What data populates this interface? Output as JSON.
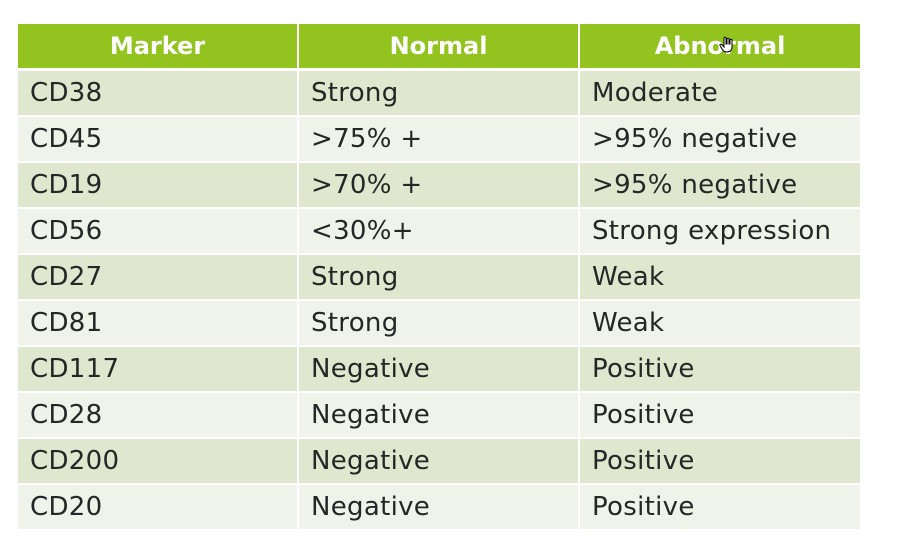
{
  "table": {
    "headers": [
      "Marker",
      "Normal",
      "Abnormal"
    ],
    "rows": [
      [
        "CD38",
        "Strong",
        "Moderate"
      ],
      [
        "CD45",
        ">75% +",
        ">95% negative"
      ],
      [
        "CD19",
        ">70% +",
        ">95% negative"
      ],
      [
        "CD56",
        "<30%+",
        "Strong expression"
      ],
      [
        "CD27",
        "Strong",
        "Weak"
      ],
      [
        "CD81",
        "Strong",
        "Weak"
      ],
      [
        "CD117",
        "Negative",
        "Positive"
      ],
      [
        "CD28",
        "Negative",
        "Positive"
      ],
      [
        "CD200",
        "Negative",
        "Positive"
      ],
      [
        "CD20",
        "Negative",
        "Positive"
      ]
    ]
  },
  "colors": {
    "header_bg": "#92c31f",
    "row_odd": "#dfe8cf",
    "row_even": "#eff3e9"
  },
  "icons": {
    "cursor": "hand-cursor-icon"
  }
}
